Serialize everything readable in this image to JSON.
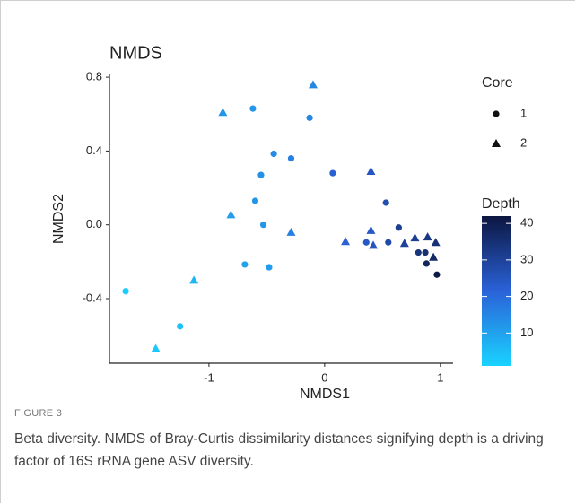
{
  "chart_data": {
    "type": "scatter",
    "title": "NMDS",
    "x_label": "NMDS1",
    "y_label": "NMDS2",
    "xlim": [
      -1.86,
      1.11
    ],
    "ylim": [
      -0.75,
      0.82
    ],
    "xticks": [
      -1,
      0,
      1
    ],
    "yticks": [
      -0.4,
      {
        "value": 0,
        "label": "0.0"
      },
      0.4,
      0.8
    ],
    "shape_legend_title": "Core",
    "color_legend_title": "Depth",
    "color_lim": [
      1,
      42
    ],
    "color_ticks": [
      10,
      20,
      30,
      40
    ],
    "color_stops": [
      "#1ad3ff",
      "#2a62d8",
      "#0c1640"
    ],
    "series": [
      {
        "name": "1",
        "shape": "circle",
        "x": [
          -1.72,
          -1.25,
          -0.62,
          -0.13,
          -0.44,
          -0.29,
          -0.55,
          -0.6,
          -0.53,
          -0.69,
          -0.48,
          0.07,
          0.53,
          0.36,
          0.55,
          0.64,
          0.81,
          0.87,
          0.88,
          0.97
        ],
        "values": [
          -0.36,
          -0.55,
          0.63,
          0.58,
          0.385,
          0.36,
          0.27,
          0.13,
          0.0,
          -0.215,
          -0.23,
          0.28,
          0.12,
          -0.095,
          -0.095,
          -0.015,
          -0.15,
          -0.15,
          -0.21,
          -0.27
        ],
        "depth": [
          2,
          4,
          12,
          15,
          14,
          16,
          13,
          12,
          12,
          10,
          11,
          22,
          27,
          24,
          28,
          31,
          34,
          35,
          38,
          41
        ]
      },
      {
        "name": "2",
        "shape": "triangle",
        "x": [
          -0.88,
          -0.1,
          -0.81,
          -0.29,
          -1.13,
          -1.46,
          0.18,
          0.4,
          0.4,
          0.42,
          0.69,
          0.78,
          0.89,
          0.96,
          0.94
        ],
        "values": [
          0.61,
          0.76,
          0.055,
          -0.04,
          -0.3,
          -0.67,
          -0.09,
          0.29,
          -0.03,
          -0.11,
          -0.1,
          -0.07,
          -0.065,
          -0.095,
          -0.175
        ],
        "depth": [
          12,
          15,
          11,
          16,
          6,
          3,
          22,
          25,
          24,
          25,
          30,
          31,
          33,
          35,
          37
        ]
      }
    ]
  },
  "figure": {
    "label": "FIGURE 3",
    "caption": "Beta diversity. NMDS of Bray-Curtis dissimilarity distances signifying depth is a driving factor of 16S rRNA gene ASV diversity."
  }
}
